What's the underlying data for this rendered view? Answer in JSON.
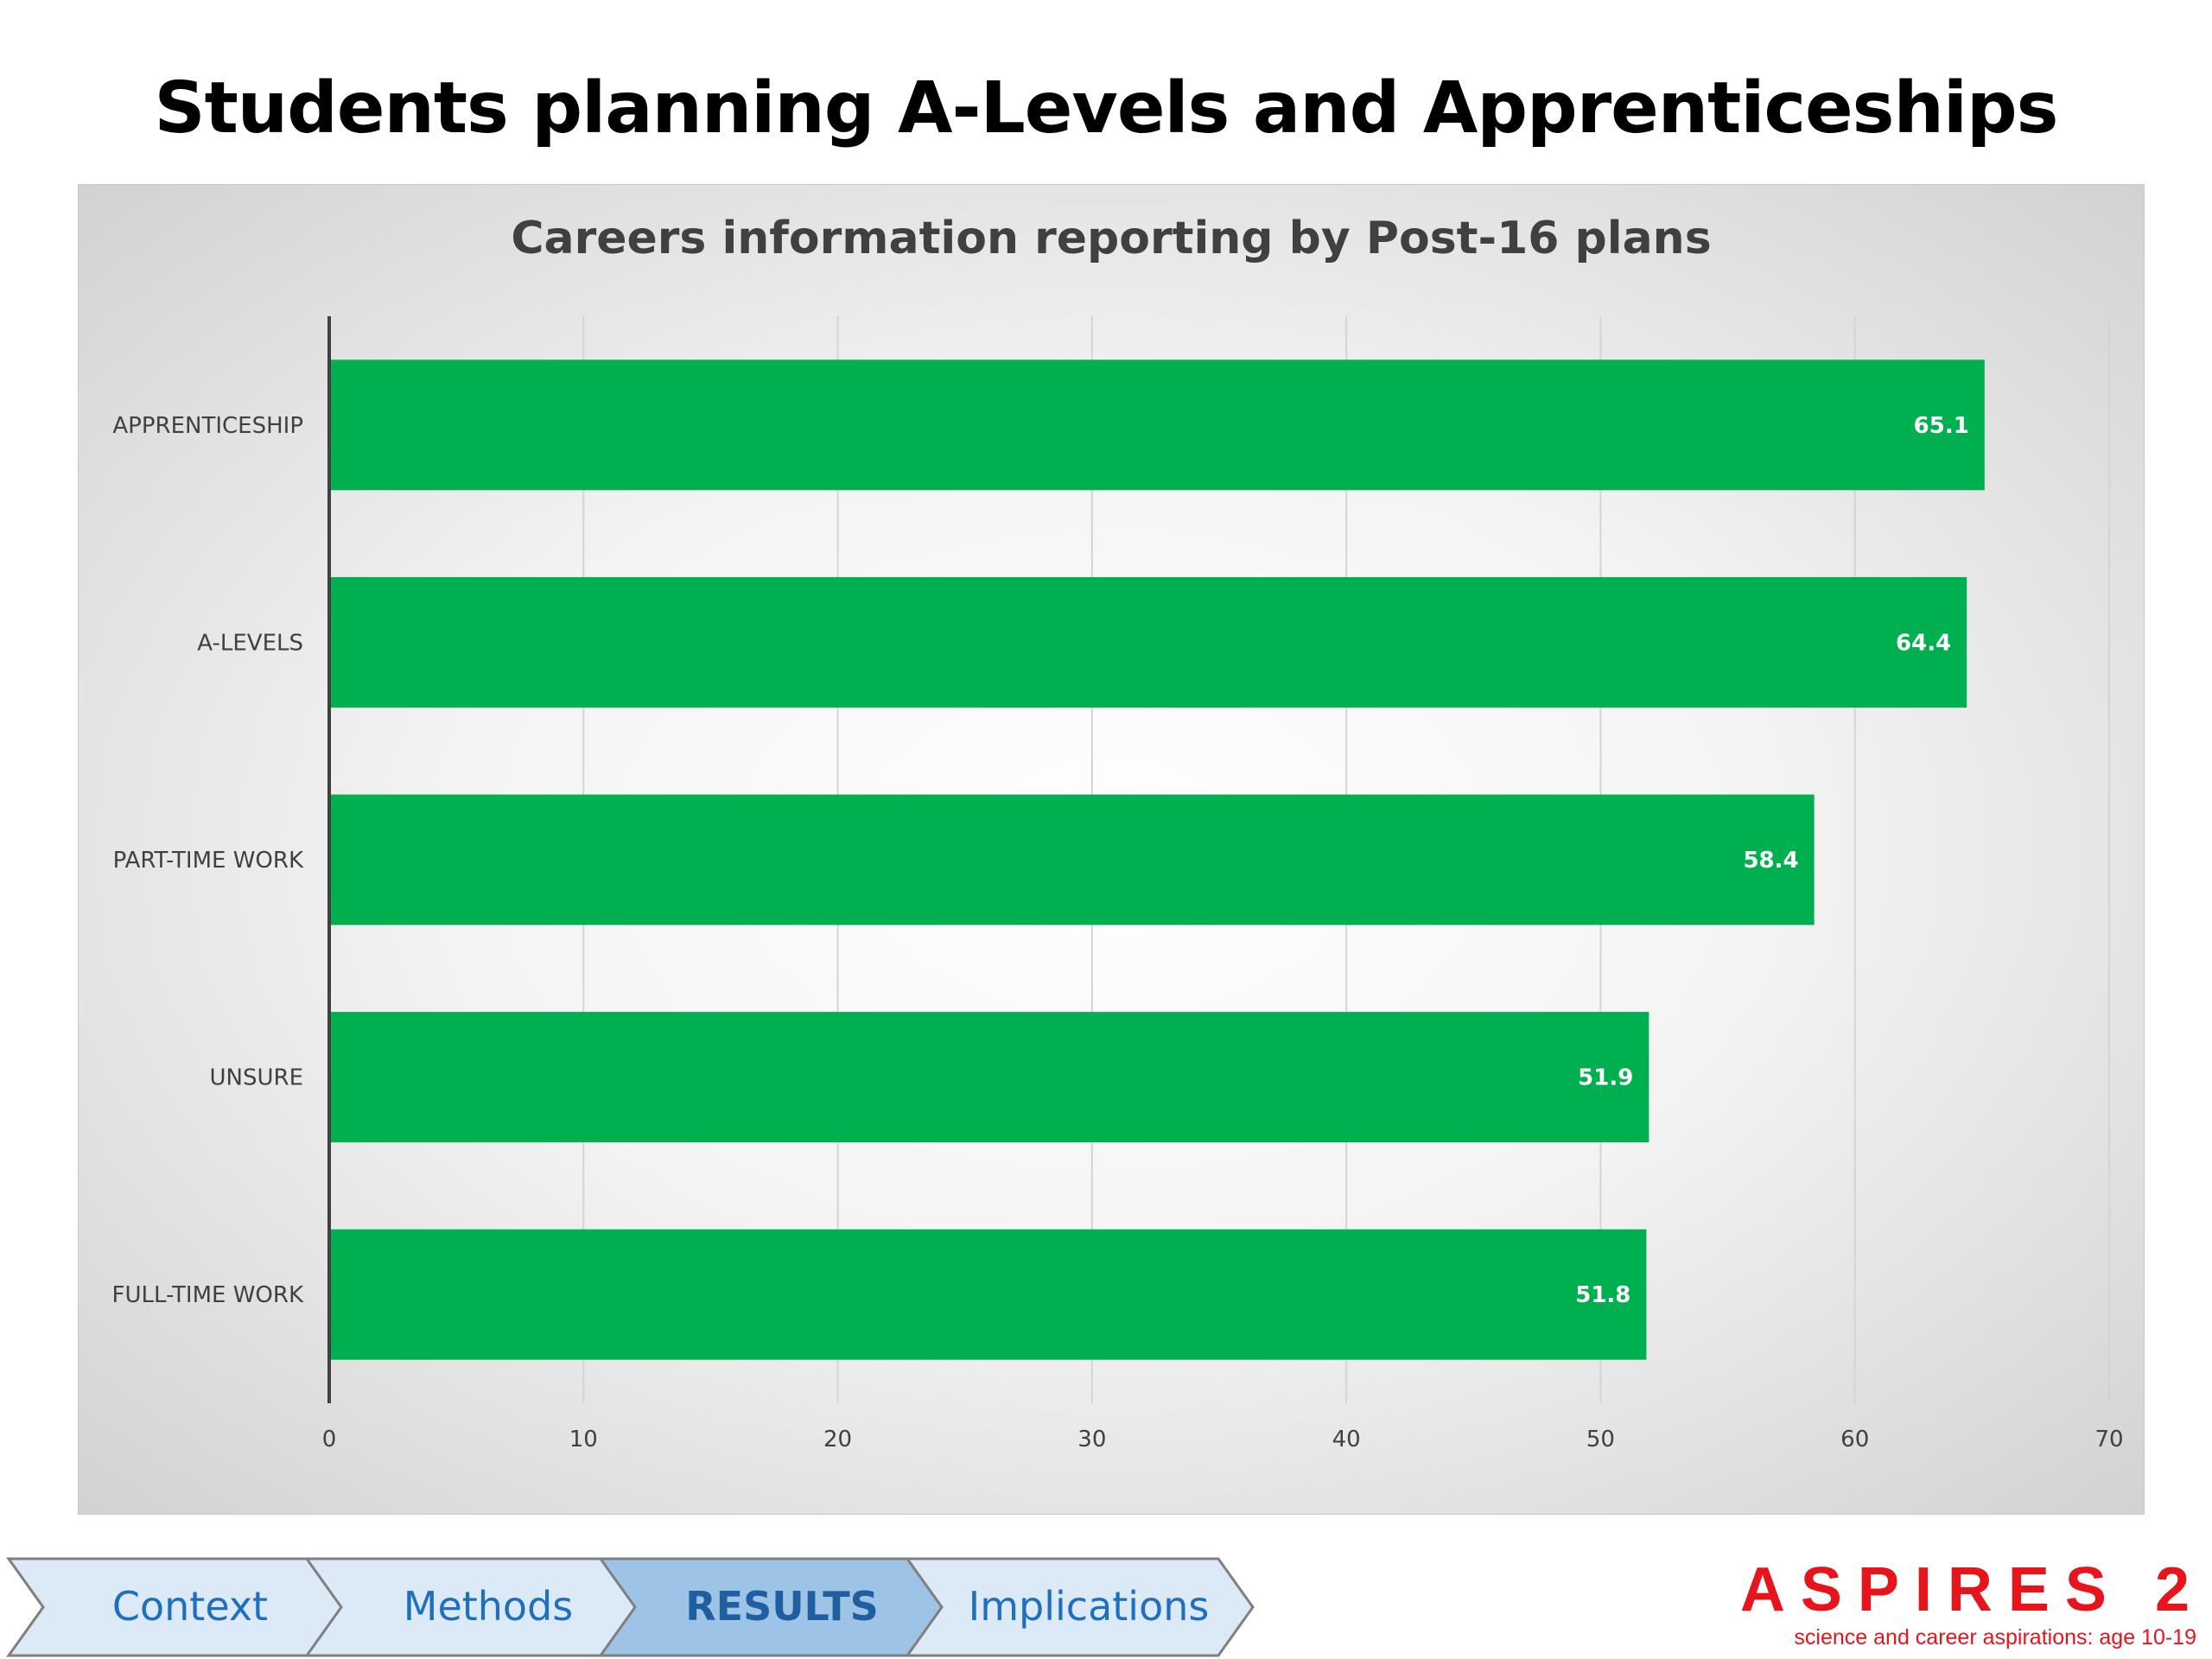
{
  "slide": {
    "title": "Students planning A-Levels and Apprenticeships"
  },
  "chart_data": {
    "type": "bar",
    "orientation": "horizontal",
    "title": "Careers information reporting by Post-16 plans",
    "categories": [
      "APPRENTICESHIP",
      "A-LEVELS",
      "PART-TIME WORK",
      "UNSURE",
      "FULL-TIME WORK"
    ],
    "values": [
      65.1,
      64.4,
      58.4,
      51.9,
      51.8
    ],
    "data_labels": [
      "65.1",
      "64.4",
      "58.4",
      "51.9",
      "51.8"
    ],
    "xlim": [
      0,
      70
    ],
    "x_ticks": [
      0,
      10,
      20,
      30,
      40,
      50,
      60,
      70
    ],
    "grid": true,
    "bar_color": "#00b050",
    "legend": "none"
  },
  "nav": {
    "items": [
      {
        "label": "Context",
        "active": false
      },
      {
        "label": "Methods",
        "active": false
      },
      {
        "label": "RESULTS",
        "active": true
      },
      {
        "label": "Implications",
        "active": false
      }
    ],
    "fill_color": "#dce9f6",
    "active_fill_color": "#9dc3e6",
    "border_color": "#7f7f7f"
  },
  "logo": {
    "word": "ASPIRES 2",
    "tagline": "science and career aspirations: age 10-19",
    "color": "#e8141c"
  }
}
